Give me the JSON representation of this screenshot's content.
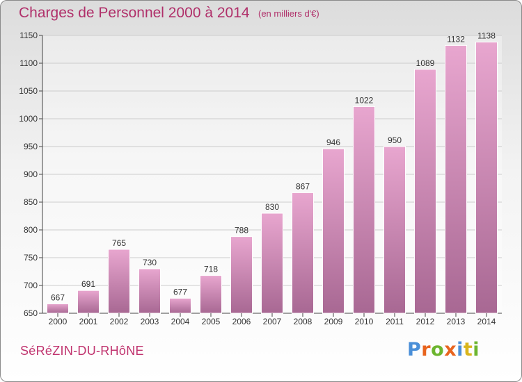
{
  "title": "Charges de Personnel 2000 à 2014",
  "subtitle": "(en milliers d'€)",
  "commune": "SéRéZIN-DU-RHôNE",
  "logo": {
    "letters": [
      "P",
      "r",
      "o",
      "x",
      "i",
      "t",
      "i"
    ],
    "colors": [
      "#4a8fd8",
      "#e8641e",
      "#6cb52f",
      "#e8641e",
      "#4a8fd8",
      "#d9b51c",
      "#6cb52f"
    ]
  },
  "colors": {
    "title": "#b0306a",
    "bar_top": "#e8a6cf",
    "bar_bottom": "#a86893",
    "grid": "#cccccc"
  },
  "chart_data": {
    "type": "bar",
    "categories": [
      "2000",
      "2001",
      "2002",
      "2003",
      "2004",
      "2005",
      "2006",
      "2007",
      "2008",
      "2009",
      "2010",
      "2011",
      "2012",
      "2013",
      "2014"
    ],
    "values": [
      667,
      691,
      765,
      730,
      677,
      718,
      788,
      830,
      867,
      946,
      1022,
      950,
      1089,
      1132,
      1138
    ],
    "ylim": [
      650,
      1150
    ],
    "yticks": [
      650,
      700,
      750,
      800,
      850,
      900,
      950,
      1000,
      1050,
      1100,
      1150
    ],
    "grid": true,
    "legend": "none",
    "data_labels": true
  }
}
